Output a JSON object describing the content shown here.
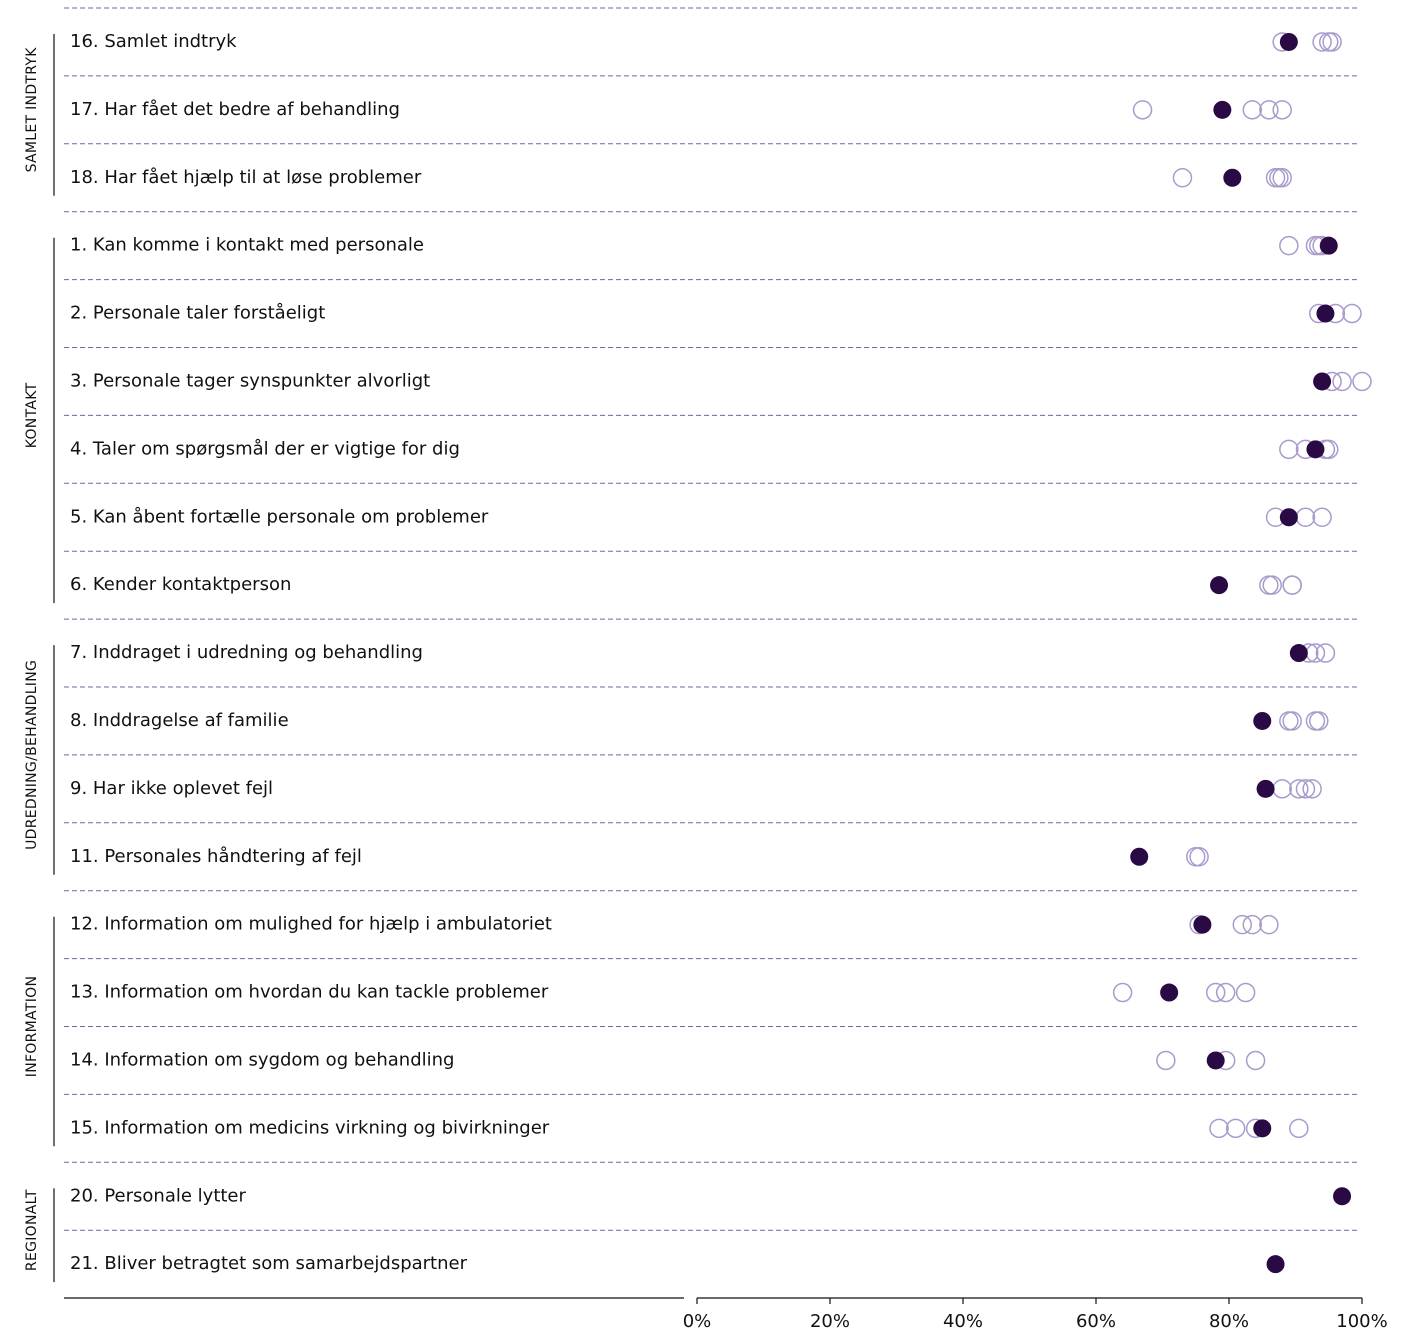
{
  "colors": {
    "primary_fill": "#2a0a45",
    "comparison_stroke": "#a99bcc",
    "separator": "#7b5ea8",
    "axis": "#111111"
  },
  "chart_data": {
    "type": "scatter",
    "orientation": "horizontal dot plot",
    "title": "",
    "xlabel": "",
    "ylabel": "",
    "xlim": [
      0,
      100
    ],
    "x_ticks": [
      {
        "value": 0,
        "label": "0%"
      },
      {
        "value": 20,
        "label": "20%"
      },
      {
        "value": 40,
        "label": "40%"
      },
      {
        "value": 60,
        "label": "60%"
      },
      {
        "value": 80,
        "label": "80%"
      },
      {
        "value": 100,
        "label": "100%"
      }
    ],
    "grid": false,
    "legend": "none",
    "marker_encoding": {
      "filled": "primary value",
      "hollow": "comparison values"
    },
    "groups": [
      {
        "label": "SAMLET INDTRYK",
        "rows": [
          {
            "label": "16. Samlet indtryk",
            "value": 89,
            "comparisons": [
              88,
              94,
              95,
              95.5
            ]
          },
          {
            "label": "17. Har fået det bedre af behandling",
            "value": 79,
            "comparisons": [
              67,
              83.5,
              86,
              88
            ]
          },
          {
            "label": "18. Har fået hjælp til at løse problemer",
            "value": 80.5,
            "comparisons": [
              73,
              87,
              87.5,
              88
            ]
          }
        ]
      },
      {
        "label": "KONTAKT",
        "rows": [
          {
            "label": "1. Kan komme i kontakt med personale",
            "value": 95,
            "comparisons": [
              89,
              93,
              93.5,
              94
            ]
          },
          {
            "label": "2. Personale taler forståeligt",
            "value": 94.5,
            "comparisons": [
              93.5,
              96,
              98.5
            ]
          },
          {
            "label": "3. Personale tager synspunkter alvorligt",
            "value": 94,
            "comparisons": [
              95.5,
              97,
              100
            ]
          },
          {
            "label": "4. Taler om spørgsmål der er vigtige for dig",
            "value": 93,
            "comparisons": [
              89,
              91.5,
              94.5,
              95
            ]
          },
          {
            "label": "5. Kan åbent fortælle personale om problemer",
            "value": 89,
            "comparisons": [
              87,
              91.5,
              94
            ]
          },
          {
            "label": "6. Kender kontaktperson",
            "value": 78.5,
            "comparisons": [
              86,
              86.5,
              89.5,
              89.5
            ]
          }
        ]
      },
      {
        "label": "UDREDNING/BEHANDLING",
        "rows": [
          {
            "label": "7. Inddraget i udredning og behandling",
            "value": 90.5,
            "comparisons": [
              92,
              93,
              94.5
            ]
          },
          {
            "label": "8. Inddragelse af familie",
            "value": 85,
            "comparisons": [
              89,
              89.5,
              93,
              93.5
            ]
          },
          {
            "label": "9. Har ikke oplevet fejl",
            "value": 85.5,
            "comparisons": [
              88,
              90.5,
              91.5,
              92.5
            ]
          },
          {
            "label": "11. Personales håndtering af fejl",
            "value": 66.5,
            "comparisons": [
              75,
              75.5
            ]
          }
        ]
      },
      {
        "label": "INFORMATION",
        "rows": [
          {
            "label": "12. Information om mulighed for hjælp i ambulatoriet",
            "value": 76,
            "comparisons": [
              75.5,
              82,
              83.5,
              86
            ]
          },
          {
            "label": "13. Information om hvordan du kan tackle problemer",
            "value": 71,
            "comparisons": [
              64,
              78,
              79.5,
              82.5
            ]
          },
          {
            "label": "14. Information om sygdom og behandling",
            "value": 78,
            "comparisons": [
              70.5,
              79.5,
              84
            ]
          },
          {
            "label": "15. Information om medicins virkning og bivirkninger",
            "value": 85,
            "comparisons": [
              78.5,
              81,
              84,
              90.5
            ]
          }
        ]
      },
      {
        "label": "REGIONALT",
        "rows": [
          {
            "label": "20. Personale lytter",
            "value": 97,
            "comparisons": []
          },
          {
            "label": "21. Bliver betragtet som samarbejdspartner",
            "value": 87,
            "comparisons": []
          }
        ]
      }
    ]
  }
}
